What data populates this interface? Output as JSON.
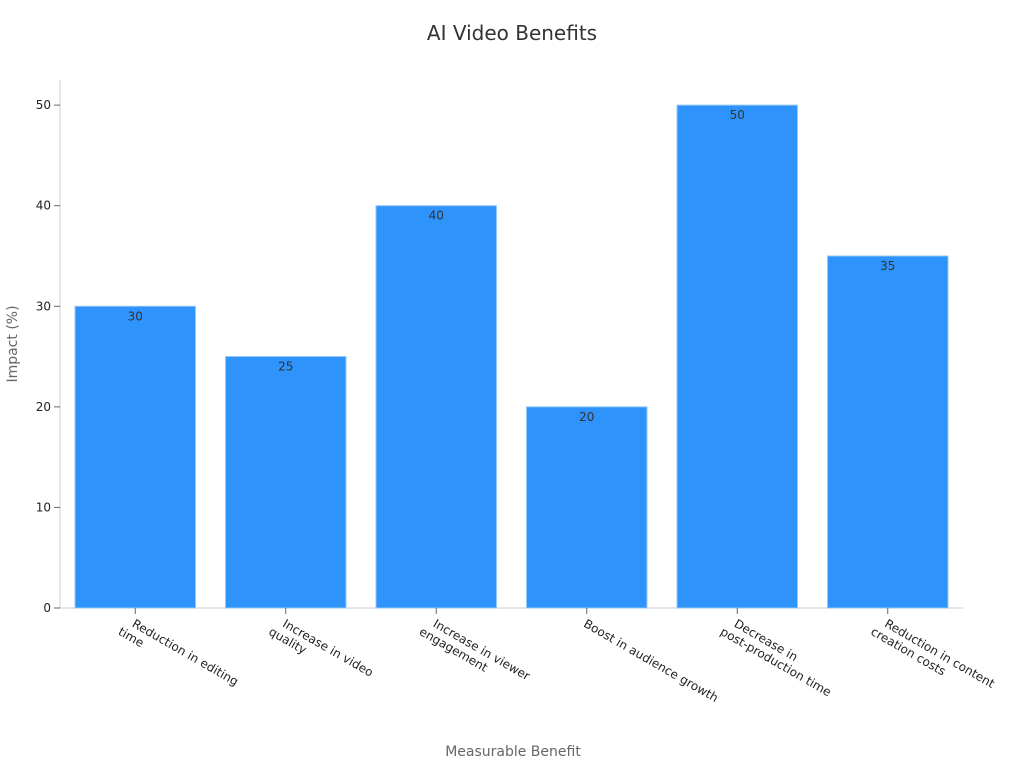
{
  "chart_data": {
    "type": "bar",
    "title": "AI Video Benefits",
    "xlabel": "Measurable Benefit",
    "ylabel": "Impact (%)",
    "categories": [
      "Reduction in editing time",
      "Increase in video quality",
      "Increase in viewer engagement",
      "Boost in audience growth",
      "Decrease in post-production time",
      "Reduction in content creation costs"
    ],
    "values": [
      30,
      25,
      40,
      20,
      50,
      35
    ],
    "ylim": [
      0,
      52.5
    ],
    "yticks": [
      0,
      10,
      20,
      30,
      40,
      50
    ],
    "bar_color": "#2e93fa",
    "grid": false,
    "legend": "none"
  }
}
